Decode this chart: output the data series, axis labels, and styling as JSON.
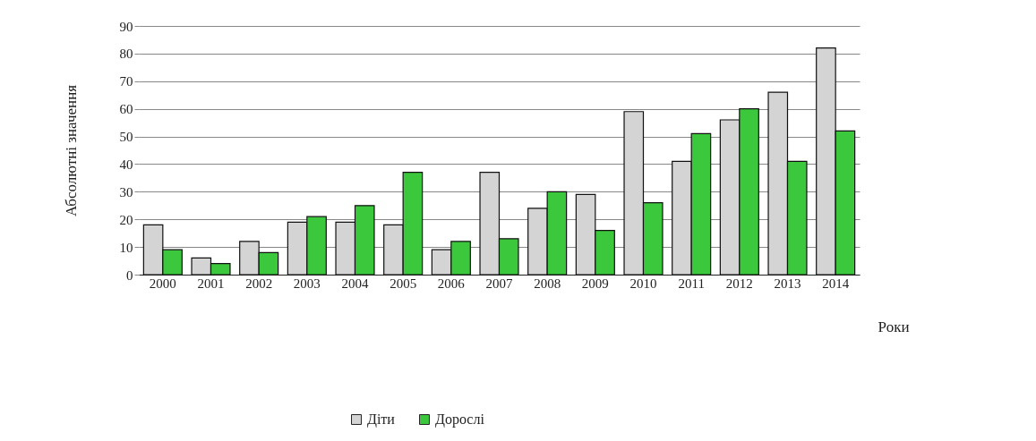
{
  "chart_data": {
    "type": "bar",
    "xlabel": "Роки",
    "ylabel": "Абсолютні значення",
    "categories": [
      "2000",
      "2001",
      "2002",
      "2003",
      "2004",
      "2005",
      "2006",
      "2007",
      "2008",
      "2009",
      "2010",
      "2011",
      "2012",
      "2013",
      "2014"
    ],
    "series": [
      {
        "name": "Діти",
        "color": "#d4d4d4",
        "values": [
          18,
          6,
          12,
          19,
          19,
          18,
          9,
          37,
          24,
          29,
          59,
          41,
          56,
          66,
          82
        ]
      },
      {
        "name": "Дорослі",
        "color": "#3cc83c",
        "values": [
          9,
          4,
          8,
          21,
          25,
          37,
          12,
          13,
          30,
          16,
          26,
          51,
          60,
          41,
          52
        ]
      }
    ],
    "ylim": [
      0,
      90
    ],
    "yticks": [
      0,
      10,
      20,
      30,
      40,
      50,
      60,
      70,
      80,
      90
    ],
    "grid": "y",
    "legend": "bottom"
  }
}
